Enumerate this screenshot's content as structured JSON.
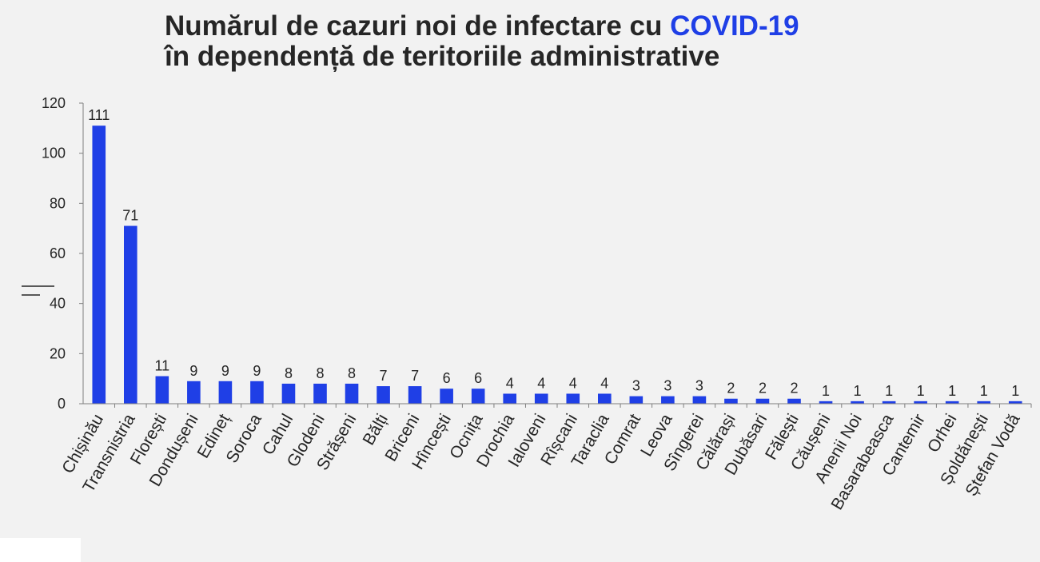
{
  "title": {
    "line1_prefix": "Numărul de cazuri noi de infectare cu ",
    "line1_accent": "COVID-19",
    "line2": "în dependență de teritoriile administrative"
  },
  "colors": {
    "bar": "#1f3fe6",
    "accent": "#1f3fe6",
    "text": "#262626",
    "axis": "#7f7f7f",
    "background": "#f2f2f2"
  },
  "chart_data": {
    "type": "bar",
    "title": "Numărul de cazuri noi de infectare cu COVID-19 în dependență de teritoriile administrative",
    "ylim": [
      0,
      120
    ],
    "yticks": [
      "0",
      "20",
      "40",
      "60",
      "80",
      "100",
      "120"
    ],
    "grid": false,
    "legend": "none",
    "categories": [
      "Chișinău",
      "Transnistria",
      "Florești",
      "Dondușeni",
      "Edineț",
      "Soroca",
      "Cahul",
      "Glodeni",
      "Strășeni",
      "Bălți",
      "Briceni",
      "Hîncești",
      "Ocnița",
      "Drochia",
      "Ialoveni",
      "Rîșcani",
      "Taraclia",
      "Comrat",
      "Leova",
      "Sîngerei",
      "Călărași",
      "Dubăsari",
      "Fălești",
      "Căușeni",
      "Anenii Noi",
      "Basarabeasca",
      "Cantemir",
      "Orhei",
      "Șoldănești",
      "Ștefan Vodă"
    ],
    "values": [
      111,
      71,
      11,
      9,
      9,
      9,
      8,
      8,
      8,
      7,
      7,
      6,
      6,
      4,
      4,
      4,
      4,
      3,
      3,
      3,
      2,
      2,
      2,
      1,
      1,
      1,
      1,
      1,
      1,
      1
    ]
  }
}
